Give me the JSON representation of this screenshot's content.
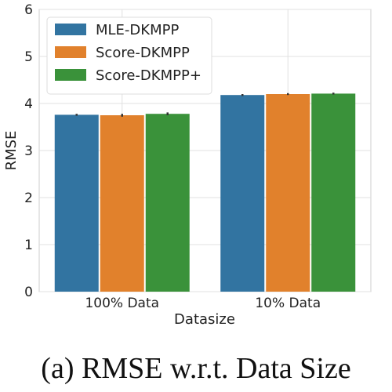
{
  "chart_data": {
    "type": "bar",
    "categories": [
      "100% Data",
      "10% Data"
    ],
    "series": [
      {
        "name": "MLE-DKMPP",
        "color": "#3274a1",
        "values": [
          3.76,
          4.18
        ],
        "err": [
          0.02,
          0.02
        ]
      },
      {
        "name": "Score-DKMPP",
        "color": "#e1812c",
        "values": [
          3.75,
          4.2
        ],
        "err": [
          0.03,
          0.02
        ]
      },
      {
        "name": "Score-DKMPP+",
        "color": "#3a923a",
        "values": [
          3.78,
          4.21
        ],
        "err": [
          0.03,
          0.02
        ]
      }
    ],
    "xlabel": "Datasize",
    "ylabel": "RMSE",
    "ylim": [
      0,
      6
    ],
    "yticks": [
      0,
      1,
      2,
      3,
      4,
      5,
      6
    ],
    "grid": true,
    "legend_position": "top-left"
  },
  "caption": "(a) RMSE w.r.t. Data Size"
}
